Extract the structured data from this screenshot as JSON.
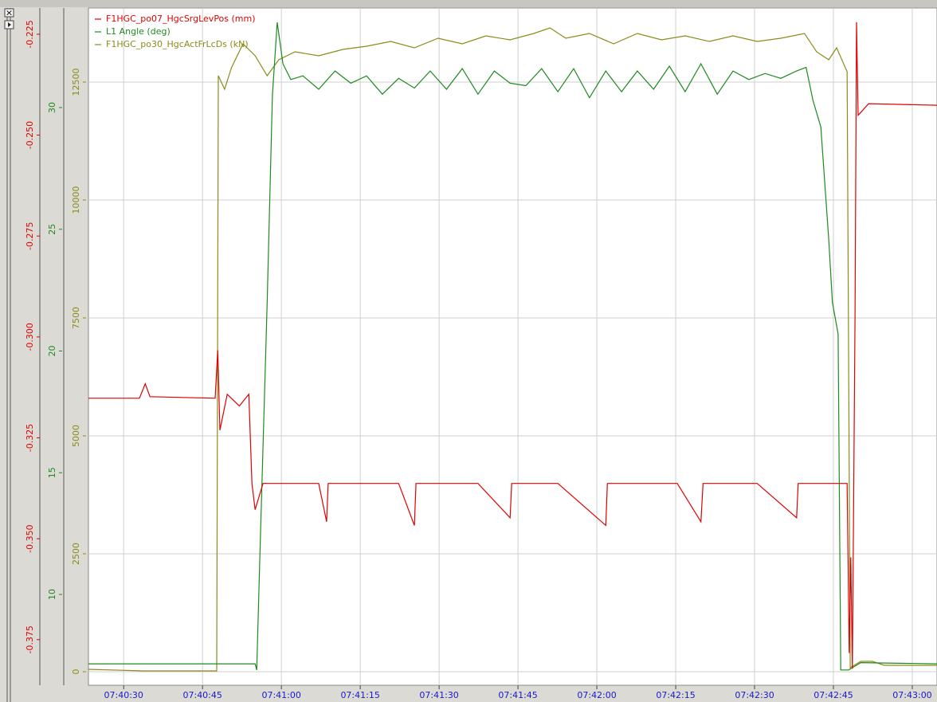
{
  "chart_data": {
    "type": "line",
    "grid": true,
    "legend": "top-left",
    "xlim": [
      27623.3,
      27784.7
    ],
    "xticks": [
      {
        "value": 27630,
        "label": "07:40:30"
      },
      {
        "value": 27645,
        "label": "07:40:45"
      },
      {
        "value": 27660,
        "label": "07:41:00"
      },
      {
        "value": 27675,
        "label": "07:41:15"
      },
      {
        "value": 27690,
        "label": "07:41:30"
      },
      {
        "value": 27705,
        "label": "07:41:45"
      },
      {
        "value": 27720,
        "label": "07:42:00"
      },
      {
        "value": 27735,
        "label": "07:42:15"
      },
      {
        "value": 27750,
        "label": "07:42:30"
      },
      {
        "value": 27765,
        "label": "07:42:45"
      },
      {
        "value": 27780,
        "label": "07:43:00"
      }
    ],
    "y_axes": [
      {
        "color": "#e00000",
        "ylim": [
          -0.3863,
          -0.2185
        ],
        "yticks": [
          -0.225,
          {
            "value": -0.25,
            "label": "-0.250"
          },
          -0.275,
          {
            "value": -0.3,
            "label": "-0.300"
          },
          -0.325,
          {
            "value": -0.35,
            "label": "-0.350"
          },
          -0.375
        ]
      },
      {
        "color": "#1e8a1e",
        "ylim": [
          6.27,
          34.09
        ],
        "yticks": [
          10,
          15,
          20,
          25,
          30
        ]
      },
      {
        "color": "#8b8b1a",
        "ylim": [
          -287,
          14071
        ],
        "yticks": [
          0,
          2500,
          5000,
          7500,
          10000,
          12500
        ]
      }
    ],
    "series": [
      {
        "name": "F1HGC_po07_HgcSrgLevPos (mm)",
        "color": "#e00000",
        "axis": 0,
        "x": [
          27623.3,
          27633.0,
          27634.1,
          27635.0,
          27647.4,
          27647.9,
          27648.3,
          27649.7,
          27652.0,
          27653.8,
          27654.4,
          27655.0,
          27656.5,
          27667.1,
          27668.6,
          27668.9,
          27682.3,
          27685.3,
          27685.6,
          27697.4,
          27703.5,
          27703.8,
          27712.6,
          27721.7,
          27722.0,
          27735.3,
          27739.8,
          27740.2,
          27750.5,
          27758.0,
          27758.3,
          27767.6,
          27768.0,
          27768.3,
          27768.6,
          27769.1,
          27769.4,
          27769.7,
          27771.7,
          27784.7
        ],
        "values": [
          -0.3152,
          -0.3152,
          -0.3116,
          -0.3148,
          -0.3152,
          -0.3033,
          -0.3231,
          -0.3142,
          -0.3171,
          -0.3142,
          -0.3363,
          -0.3428,
          -0.3363,
          -0.3363,
          -0.3458,
          -0.3363,
          -0.3363,
          -0.3467,
          -0.3363,
          -0.3363,
          -0.3448,
          -0.3363,
          -0.3363,
          -0.3467,
          -0.3363,
          -0.3363,
          -0.3458,
          -0.3363,
          -0.3363,
          -0.3448,
          -0.3363,
          -0.3363,
          -0.3783,
          -0.3546,
          -0.3822,
          -0.2954,
          -0.222,
          -0.2451,
          -0.2422,
          -0.2426
        ]
      },
      {
        "name": "L1 Angle (deg)",
        "color": "#1e8a1e",
        "axis": 1,
        "x": [
          27623.3,
          27655.0,
          27655.3,
          27655.9,
          27657.3,
          27658.3,
          27659.2,
          27660.3,
          27661.8,
          27664.1,
          27667.1,
          27670.2,
          27673.2,
          27676.2,
          27679.2,
          27682.3,
          27685.3,
          27688.3,
          27691.4,
          27694.4,
          27697.4,
          27700.5,
          27703.5,
          27706.5,
          27709.5,
          27712.6,
          27715.6,
          27718.6,
          27721.7,
          27724.7,
          27727.7,
          27730.8,
          27733.8,
          27736.8,
          27739.8,
          27742.9,
          27745.9,
          27748.9,
          27752.0,
          27755.0,
          27758.0,
          27759.8,
          27761.1,
          27762.6,
          27764.1,
          27764.8,
          27765.9,
          27766.4,
          27767.9,
          27770.2,
          27784.7
        ],
        "values": [
          7.15,
          7.15,
          6.9,
          11.5,
          21.98,
          30.5,
          33.5,
          31.8,
          31.15,
          31.3,
          30.75,
          31.5,
          31.0,
          31.3,
          30.55,
          31.2,
          30.8,
          31.5,
          30.75,
          31.6,
          30.55,
          31.5,
          31.0,
          30.9,
          31.6,
          30.65,
          31.6,
          30.4,
          31.5,
          30.65,
          31.5,
          30.75,
          31.7,
          30.65,
          31.8,
          30.55,
          31.5,
          31.15,
          31.4,
          31.2,
          31.5,
          31.65,
          30.3,
          29.2,
          24.6,
          22.0,
          20.7,
          6.9,
          6.9,
          7.2,
          7.15
        ]
      },
      {
        "name": "F1HGC_po30_HgcActFrLcDs (kN)",
        "color": "#8b8b1a",
        "axis": 2,
        "x": [
          27623.3,
          27633.8,
          27647.7,
          27648.0,
          27649.2,
          27650.5,
          27652.7,
          27655.0,
          27657.3,
          27659.5,
          27662.6,
          27667.1,
          27671.7,
          27676.2,
          27680.8,
          27685.3,
          27689.8,
          27694.4,
          27698.9,
          27703.5,
          27708.0,
          27711.1,
          27714.1,
          27718.6,
          27723.2,
          27727.7,
          27732.3,
          27736.8,
          27741.4,
          27745.9,
          27750.5,
          27755.0,
          27759.5,
          27761.8,
          27764.1,
          27765.6,
          27767.6,
          27768.2,
          27770.2,
          27772.4,
          27774.7,
          27784.7
        ],
        "values": [
          50,
          17,
          17,
          12635,
          12348,
          12804,
          13311,
          13057,
          12635,
          12973,
          13142,
          13057,
          13193,
          13260,
          13361,
          13226,
          13429,
          13311,
          13480,
          13395,
          13530,
          13649,
          13429,
          13530,
          13311,
          13530,
          13395,
          13480,
          13361,
          13480,
          13361,
          13429,
          13530,
          13142,
          12973,
          13226,
          12720,
          84,
          220,
          220,
          135,
          135
        ]
      }
    ]
  }
}
